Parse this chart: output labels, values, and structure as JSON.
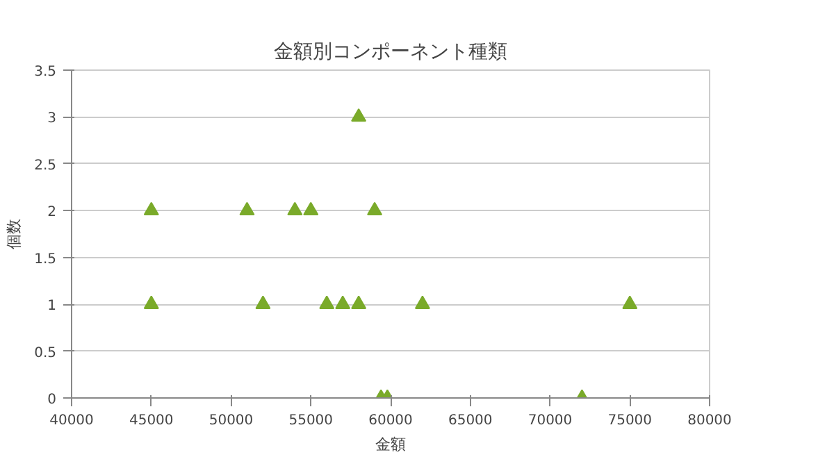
{
  "chart_data": {
    "type": "scatter",
    "title": "金額別コンポーネント種類",
    "xlabel": "金額",
    "ylabel": "個数",
    "x": [
      45000,
      45000,
      51000,
      52000,
      54000,
      55000,
      56000,
      57000,
      58000,
      58000,
      59000,
      59400,
      59800,
      62000,
      72000,
      75000
    ],
    "series": [
      {
        "color": "#7aaa2a",
        "values": [
          2,
          1,
          2,
          1,
          2,
          2,
          1,
          1,
          1,
          3,
          2,
          0,
          0,
          1,
          0,
          1
        ]
      }
    ],
    "xlim": [
      40000,
      80000
    ],
    "xticks": [
      40000,
      45000,
      50000,
      55000,
      60000,
      65000,
      70000,
      75000,
      80000
    ],
    "ylim": [
      0,
      3.5
    ],
    "yticks": [
      0,
      0.5,
      1,
      1.5,
      2,
      2.5,
      3,
      3.5
    ],
    "grid": "y",
    "marker": "triangle"
  }
}
